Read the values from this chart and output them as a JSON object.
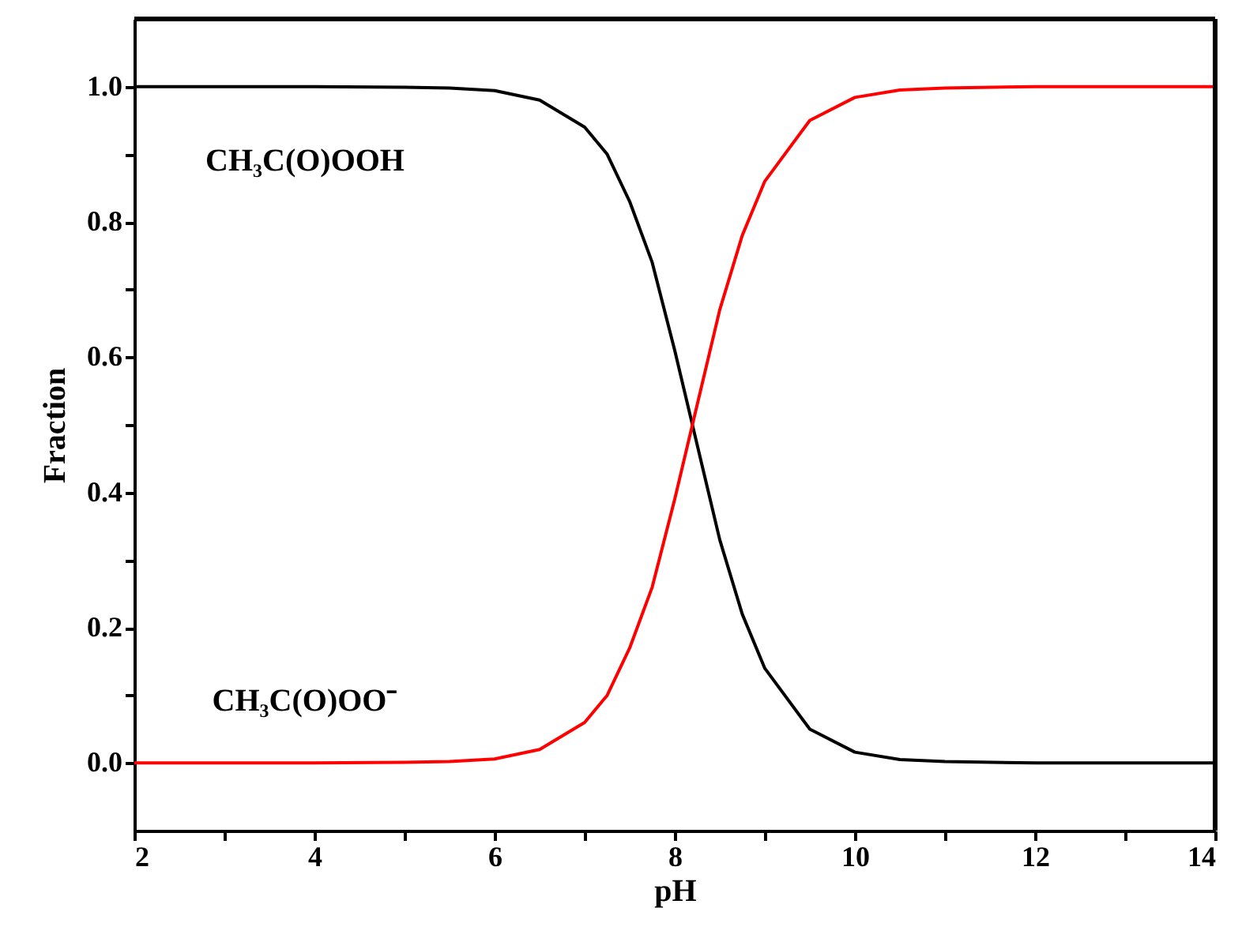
{
  "chart_data": {
    "type": "line",
    "xlabel": "pH",
    "ylabel": "Fraction",
    "x": [
      2,
      3,
      4,
      5,
      5.5,
      6,
      6.5,
      7,
      7.25,
      7.5,
      7.75,
      8,
      8.25,
      8.5,
      8.75,
      9,
      9.5,
      10,
      10.5,
      11,
      12,
      13,
      14
    ],
    "series": [
      {
        "color": "#000000",
        "values": [
          1.0,
          1.0,
          1.0,
          0.999,
          0.998,
          0.994,
          0.98,
          0.94,
          0.9,
          0.83,
          0.74,
          0.61,
          0.47,
          0.33,
          0.22,
          0.14,
          0.05,
          0.016,
          0.005,
          0.002,
          0.0,
          0.0,
          0.0
        ]
      },
      {
        "color": "#ff0000",
        "values": [
          0.0,
          0.0,
          0.0,
          0.001,
          0.002,
          0.006,
          0.02,
          0.06,
          0.1,
          0.17,
          0.26,
          0.39,
          0.53,
          0.67,
          0.78,
          0.86,
          0.95,
          0.984,
          0.995,
          0.998,
          1.0,
          1.0,
          1.0
        ]
      }
    ],
    "xlim": [
      2,
      14
    ],
    "ylim": [
      -0.1,
      1.1
    ],
    "xticks": [
      2,
      {
        "value": 3,
        "label": null
      },
      4,
      {
        "value": 5,
        "label": null
      },
      6,
      {
        "value": 7,
        "label": null
      },
      8,
      {
        "value": 9,
        "label": null
      },
      10,
      {
        "value": 11,
        "label": null
      },
      12,
      {
        "value": 13,
        "label": null
      },
      14
    ],
    "yticks": [
      {
        "value": 0,
        "label": "0.0"
      },
      {
        "value": 0.1,
        "label": null
      },
      {
        "value": 0.2,
        "label": "0.2"
      },
      {
        "value": 0.3,
        "label": null
      },
      {
        "value": 0.4,
        "label": "0.4"
      },
      {
        "value": 0.5,
        "label": null
      },
      {
        "value": 0.6,
        "label": "0.6"
      },
      {
        "value": 0.7,
        "label": null
      },
      {
        "value": 0.8,
        "label": "0.8"
      },
      {
        "value": 0.9,
        "label": null
      },
      {
        "value": 1.0,
        "label": "1.0"
      }
    ],
    "annotations": [
      "CH₃C(O)OOH",
      "CH₃C(O)OO⁻"
    ],
    "grid": false,
    "marker": "none",
    "line_style": "solid"
  }
}
